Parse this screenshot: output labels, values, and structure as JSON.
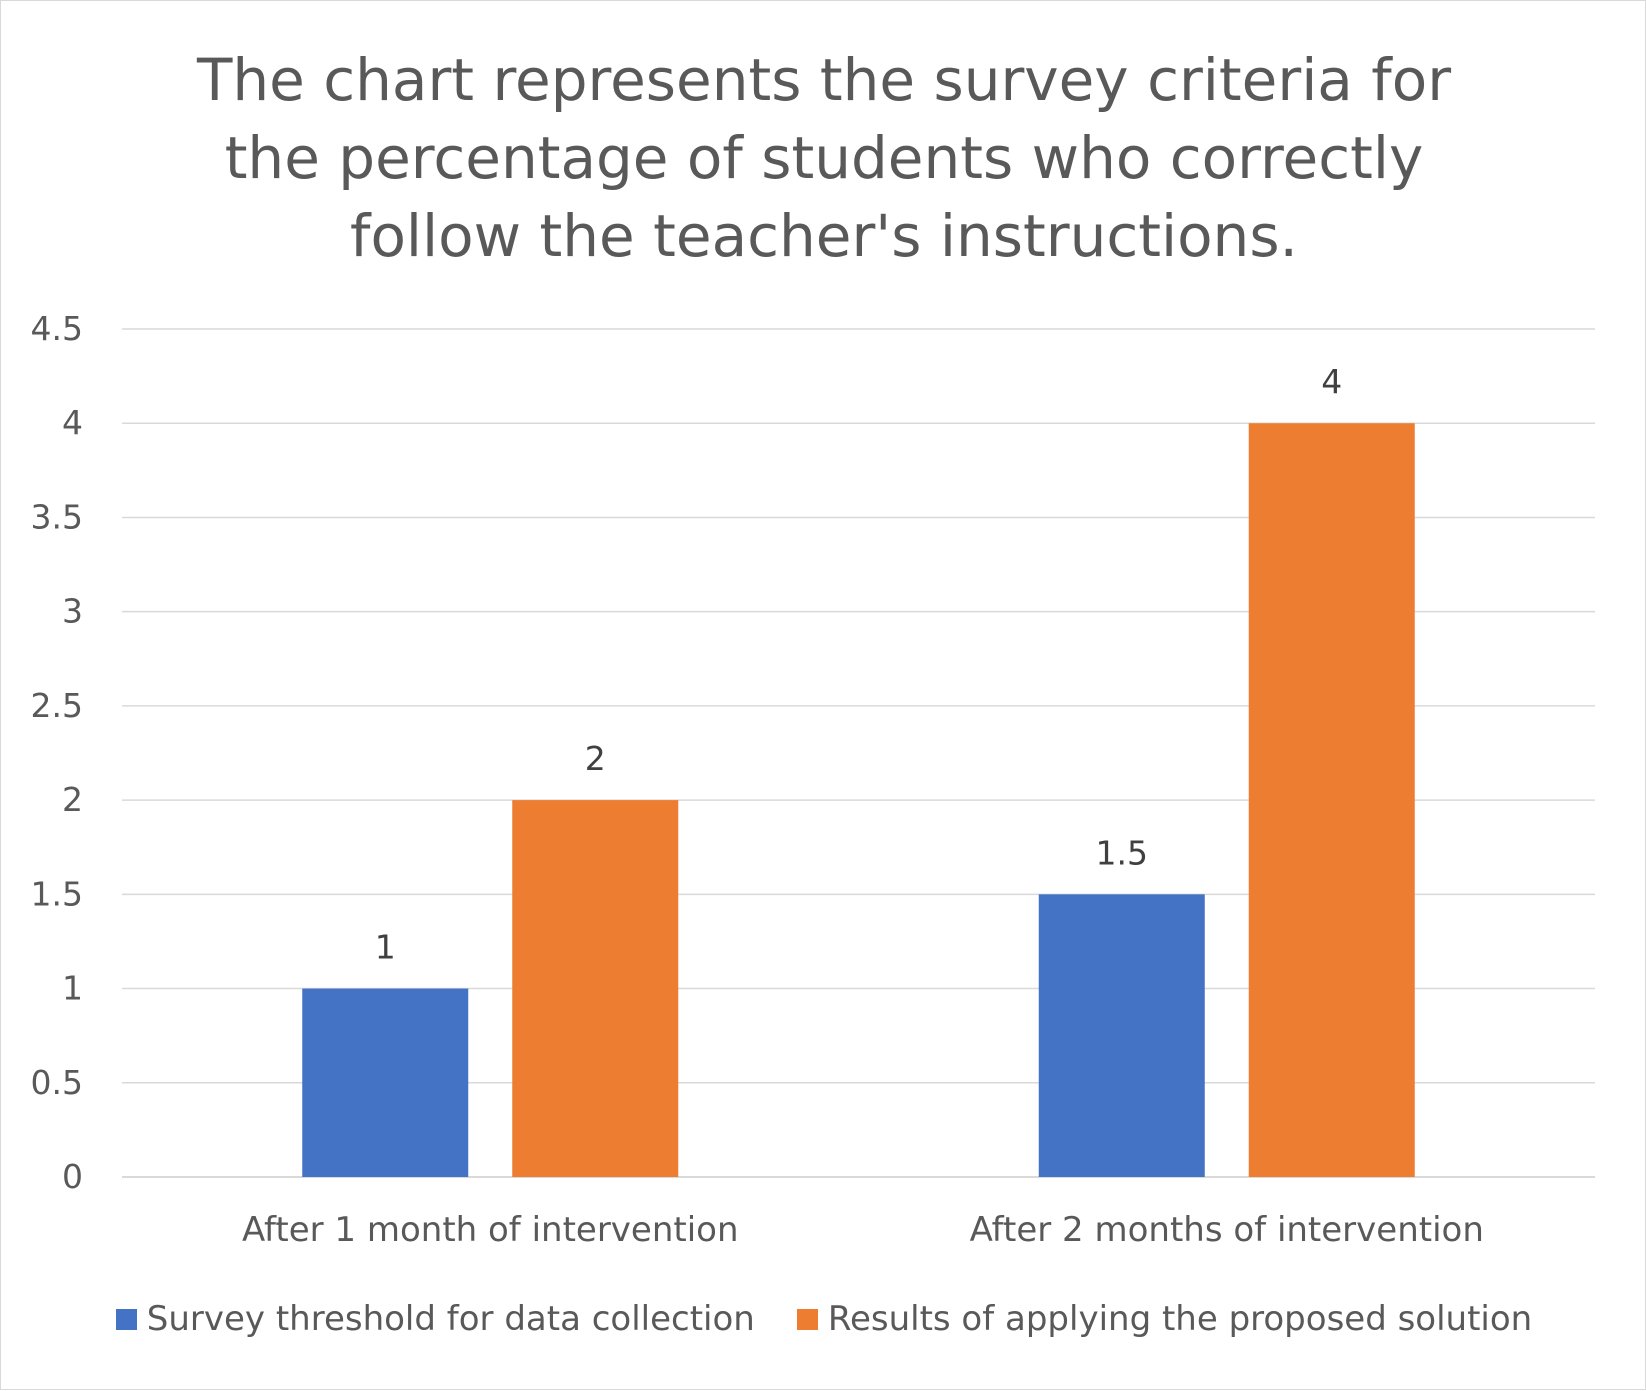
{
  "chart_data": {
    "type": "bar",
    "title": "The chart represents the survey criteria for the percentage of students who correctly follow the teacher's instructions.",
    "categories": [
      "After 1 month of intervention",
      "After 2 months of intervention"
    ],
    "series": [
      {
        "name": "Survey threshold for data collection",
        "values": [
          1,
          1.5
        ],
        "color": "#4472c4"
      },
      {
        "name": "Results of applying the proposed solution",
        "values": [
          2,
          4
        ],
        "color": "#ed7d31"
      }
    ],
    "xlabel": "",
    "ylabel": "",
    "ylim": [
      0,
      4.5
    ],
    "yticks": [
      "0",
      "0.5",
      "1",
      "1.5",
      "2",
      "2.5",
      "3",
      "3.5",
      "4",
      "4.5"
    ],
    "grid": true,
    "legend_position": "bottom",
    "data_labels": true,
    "gridline_color": "#d9d9d9"
  }
}
